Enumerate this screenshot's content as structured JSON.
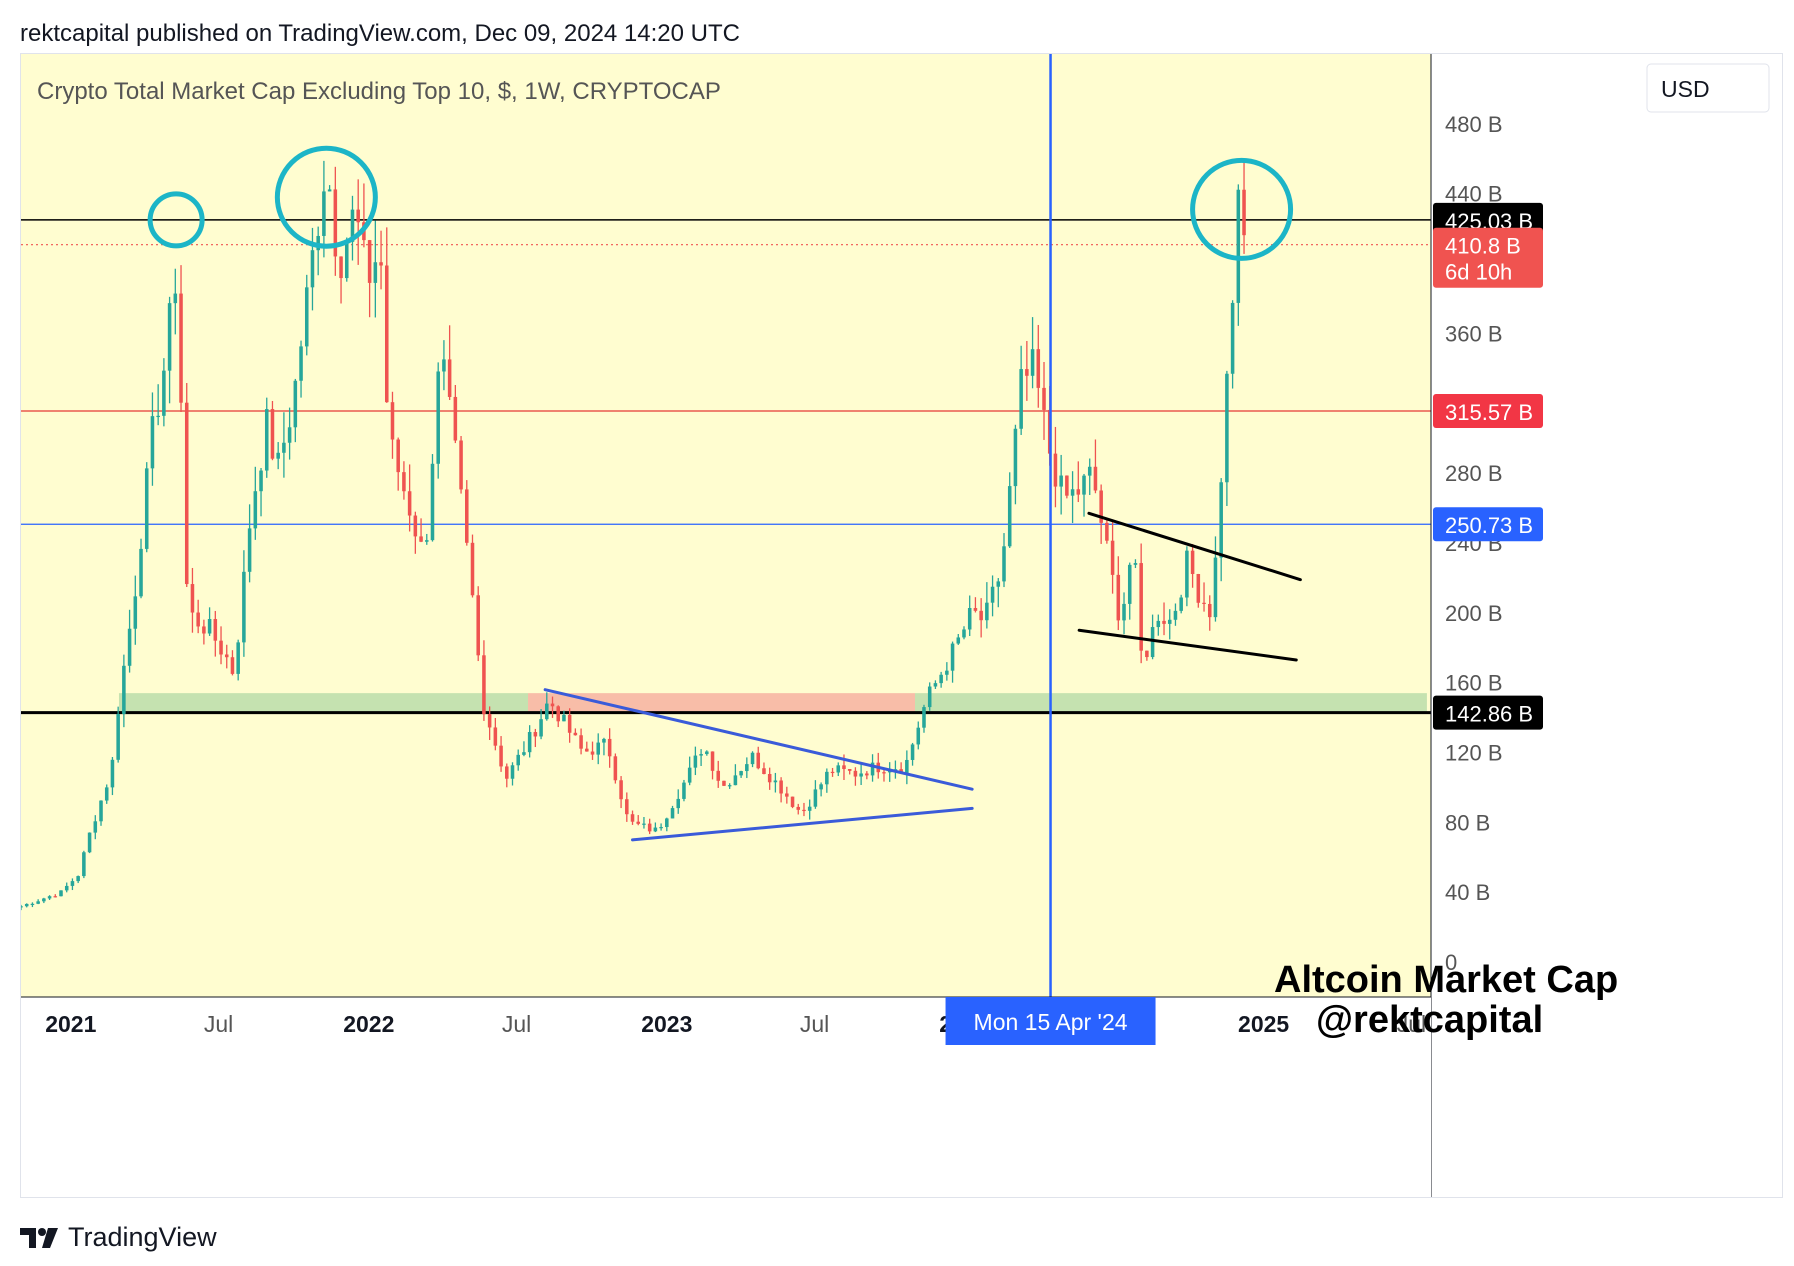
{
  "header": {
    "text": "rektcapital published on TradingView.com, Dec 09, 2024 14:20 UTC"
  },
  "footer": {
    "brand": "TradingView",
    "logo_icon": "tradingview-logo-icon"
  },
  "chart_data": {
    "type": "candlestick",
    "title": "Crypto Total Market Cap Excluding Top 10, $, 1W, CRYPTOCAP",
    "currency_button": "USD",
    "annotation": [
      "Altcoin Market Cap",
      "@rektcapital"
    ],
    "y_unit": "B",
    "ylim": [
      -20,
      520
    ],
    "y_ticks": [
      {
        "value": 0,
        "label": "0"
      },
      {
        "value": 40,
        "label": "40 B"
      },
      {
        "value": 80,
        "label": "80 B"
      },
      {
        "value": 120,
        "label": "120 B"
      },
      {
        "value": 160,
        "label": "160 B"
      },
      {
        "value": 200,
        "label": "200 B"
      },
      {
        "value": 240,
        "label": "240 B"
      },
      {
        "value": 280,
        "label": "280 B"
      },
      {
        "value": 360,
        "label": "360 B"
      },
      {
        "value": 440,
        "label": "440 B"
      },
      {
        "value": 480,
        "label": "480 B"
      }
    ],
    "x_range": [
      "2020-11-01",
      "2025-07-25"
    ],
    "x_ticks": [
      {
        "date": "2021-01-01",
        "label": "2021",
        "bold": true
      },
      {
        "date": "2021-07-01",
        "label": "Jul",
        "bold": false
      },
      {
        "date": "2022-01-01",
        "label": "2022",
        "bold": true
      },
      {
        "date": "2022-07-01",
        "label": "Jul",
        "bold": false
      },
      {
        "date": "2023-01-01",
        "label": "2023",
        "bold": true
      },
      {
        "date": "2023-07-01",
        "label": "Jul",
        "bold": false
      },
      {
        "date": "2024-01-01",
        "label": "2024",
        "bold": true
      },
      {
        "date": "2025-01-01",
        "label": "2025",
        "bold": true
      },
      {
        "date": "2025-07-01",
        "label": "Jul",
        "bold": false
      }
    ],
    "colors": {
      "up": "#26a69a",
      "down": "#ef5350",
      "background": "#fffdd0",
      "support_zone": "#c5e2b0",
      "resistance_zone": "#f8bda8",
      "circle": "#1cb5c7",
      "trendline_blue": "#3a5bd9",
      "crosshair": "#2962ff"
    },
    "price_labels": [
      {
        "value": 425.03,
        "label": "425.03 B",
        "color": "#000000"
      },
      {
        "value": 410.8,
        "label": "410.8 B",
        "sub": "6d 10h",
        "color": "#f05350"
      },
      {
        "value": 315.57,
        "label": "315.57 B",
        "color": "#f23645"
      },
      {
        "value": 250.73,
        "label": "250.73 B",
        "color": "#2962ff"
      },
      {
        "value": 142.86,
        "label": "142.86 B",
        "color": "#000000"
      }
    ],
    "horizontal_lines": [
      {
        "value": 425.03,
        "color": "#000000",
        "style": "solid",
        "width": 1.5
      },
      {
        "value": 410.8,
        "color": "#f05350",
        "style": "dotted",
        "width": 1.2
      },
      {
        "value": 315.57,
        "color": "#e53935",
        "style": "solid",
        "width": 1.2
      },
      {
        "value": 250.73,
        "color": "#2962ff",
        "style": "solid",
        "width": 1.2
      },
      {
        "value": 142.86,
        "color": "#000000",
        "style": "solid",
        "width": 3
      }
    ],
    "zones": [
      {
        "x0": "2021-03-01",
        "x1": "2022-07-15",
        "y0": 143,
        "y1": 154,
        "color": "#c5e2b0"
      },
      {
        "x0": "2022-07-15",
        "x1": "2023-11-01",
        "y0": 143,
        "y1": 154,
        "color": "#f8bda8"
      },
      {
        "x0": "2023-11-01",
        "x1": "2025-07-20",
        "y0": 143,
        "y1": 154,
        "color": "#c5e2b0"
      }
    ],
    "trendlines": [
      {
        "from": [
          "2022-08-05",
          156
        ],
        "to": [
          "2024-01-10",
          99
        ],
        "color": "#3a5bd9",
        "width": 3
      },
      {
        "from": [
          "2022-11-20",
          70
        ],
        "to": [
          "2024-01-10",
          88
        ],
        "color": "#3a5bd9",
        "width": 3
      },
      {
        "from": [
          "2024-06-01",
          257
        ],
        "to": [
          "2025-02-15",
          219
        ],
        "color": "#000000",
        "width": 3
      },
      {
        "from": [
          "2024-05-20",
          190
        ],
        "to": [
          "2025-02-10",
          173
        ],
        "color": "#000000",
        "width": 3
      }
    ],
    "circles": [
      {
        "date": "2021-05-10",
        "value": 425,
        "r": 26
      },
      {
        "date": "2021-11-10",
        "value": 438,
        "r": 49
      },
      {
        "date": "2024-12-05",
        "value": 431,
        "r": 49
      }
    ],
    "crosshair": {
      "date": "2024-04-15",
      "label": "Mon 15 Apr '24"
    },
    "pivots": [
      [
        "2020-11-01",
        32
      ],
      [
        "2020-12-20",
        40
      ],
      [
        "2021-01-10",
        50
      ],
      [
        "2021-01-25",
        75
      ],
      [
        "2021-02-20",
        110
      ],
      [
        "2021-03-01",
        150
      ],
      [
        "2021-03-20",
        210
      ],
      [
        "2021-04-10",
        300
      ],
      [
        "2021-04-25",
        340
      ],
      [
        "2021-05-10",
        395
      ],
      [
        "2021-05-17",
        310
      ],
      [
        "2021-05-24",
        200
      ],
      [
        "2021-06-20",
        190
      ],
      [
        "2021-07-10",
        175
      ],
      [
        "2021-07-20",
        165
      ],
      [
        "2021-08-10",
        260
      ],
      [
        "2021-08-30",
        310
      ],
      [
        "2021-09-10",
        280
      ],
      [
        "2021-09-30",
        320
      ],
      [
        "2021-10-20",
        390
      ],
      [
        "2021-11-10",
        460
      ],
      [
        "2021-11-25",
        400
      ],
      [
        "2021-12-15",
        430
      ],
      [
        "2021-12-30",
        390
      ],
      [
        "2022-01-15",
        410
      ],
      [
        "2022-01-25",
        300
      ],
      [
        "2022-02-20",
        260
      ],
      [
        "2022-03-10",
        230
      ],
      [
        "2022-03-30",
        350
      ],
      [
        "2022-04-20",
        280
      ],
      [
        "2022-05-10",
        200
      ],
      [
        "2022-05-20",
        150
      ],
      [
        "2022-06-18",
        105
      ],
      [
        "2022-07-20",
        130
      ],
      [
        "2022-08-10",
        150
      ],
      [
        "2022-09-20",
        120
      ],
      [
        "2022-10-20",
        125
      ],
      [
        "2022-11-15",
        80
      ],
      [
        "2022-12-20",
        75
      ],
      [
        "2023-01-25",
        105
      ],
      [
        "2023-02-15",
        125
      ],
      [
        "2023-03-10",
        100
      ],
      [
        "2023-04-15",
        118
      ],
      [
        "2023-05-20",
        100
      ],
      [
        "2023-06-15",
        85
      ],
      [
        "2023-07-20",
        110
      ],
      [
        "2023-08-20",
        108
      ],
      [
        "2023-09-15",
        112
      ],
      [
        "2023-10-20",
        112
      ],
      [
        "2023-11-15",
        150
      ],
      [
        "2023-12-20",
        180
      ],
      [
        "2024-01-10",
        200
      ],
      [
        "2024-01-25",
        195
      ],
      [
        "2024-02-15",
        225
      ],
      [
        "2024-03-10",
        330
      ],
      [
        "2024-03-25",
        340
      ],
      [
        "2024-04-15",
        290
      ],
      [
        "2024-05-01",
        265
      ],
      [
        "2024-05-20",
        270
      ],
      [
        "2024-06-05",
        280
      ],
      [
        "2024-06-25",
        230
      ],
      [
        "2024-07-10",
        195
      ],
      [
        "2024-07-25",
        240
      ],
      [
        "2024-08-05",
        170
      ],
      [
        "2024-08-25",
        200
      ],
      [
        "2024-09-10",
        195
      ],
      [
        "2024-09-30",
        230
      ],
      [
        "2024-10-15",
        210
      ],
      [
        "2024-10-30",
        200
      ],
      [
        "2024-11-10",
        280
      ],
      [
        "2024-11-25",
        390
      ],
      [
        "2024-12-01",
        430
      ],
      [
        "2024-12-09",
        411
      ]
    ]
  }
}
